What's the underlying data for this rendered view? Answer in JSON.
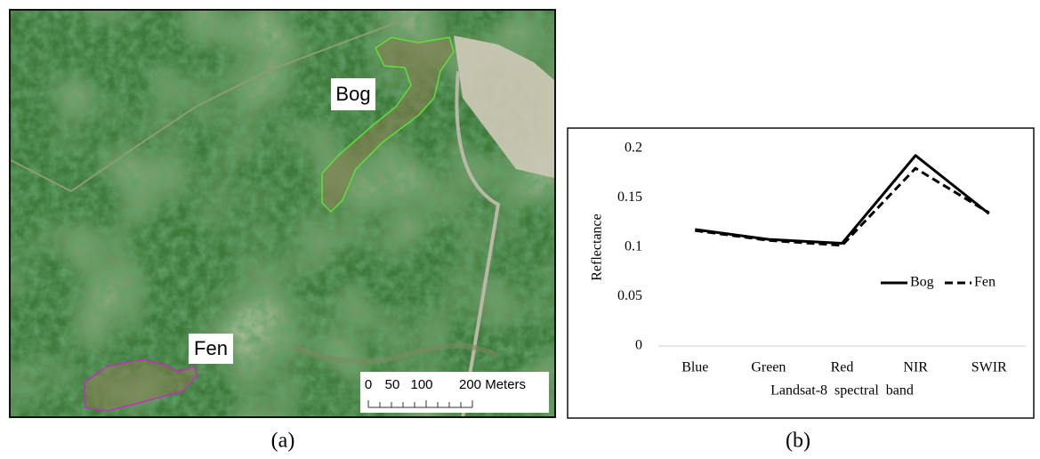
{
  "image": {
    "labels": [
      "Bog",
      "Fen"
    ],
    "scale_bar": {
      "ticks": [
        "0",
        "50",
        "100",
        "200 Meters"
      ]
    }
  },
  "captions": [
    "(a)",
    "(b)"
  ],
  "chart_data": {
    "type": "line",
    "categories": [
      "Blue",
      "Green",
      "Red",
      "NIR",
      "SWIR"
    ],
    "series": [
      {
        "name": "Bog",
        "color": "#000000",
        "dash": "solid",
        "values": [
          0.118,
          0.108,
          0.104,
          0.193,
          0.134
        ]
      },
      {
        "name": "Fen",
        "color": "#000000",
        "dash": "dashed",
        "values": [
          0.117,
          0.107,
          0.102,
          0.18,
          0.135
        ]
      }
    ],
    "x_label": "Landsat-8  spectral  band",
    "y_label": "Reflectance",
    "ylim": [
      0,
      0.2
    ],
    "yticks": [
      0,
      0.05,
      0.1,
      0.15,
      0.2
    ],
    "grid": false,
    "legend": "right"
  }
}
